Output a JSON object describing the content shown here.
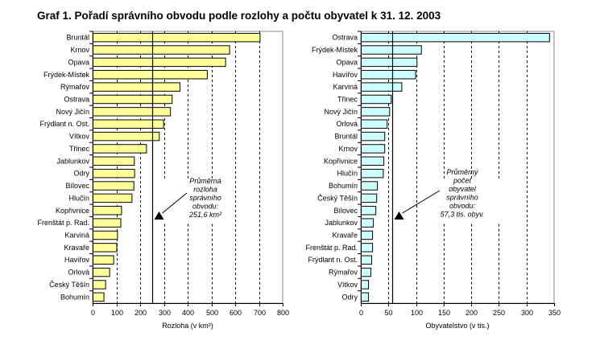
{
  "chart_data": [
    {
      "type": "bar",
      "orientation": "horizontal",
      "title": "Graf 1. Pořadí správního obvodu podle rozlohy a počtu obyvatel k 31. 12. 2003",
      "xlabel": "Rozloha (v km²)",
      "xlim": [
        0,
        800
      ],
      "xticks": [
        "0",
        "100",
        "200",
        "300",
        "400",
        "500",
        "600",
        "700",
        "800"
      ],
      "tick_step": 100,
      "grid": "vertical dashed",
      "bar_color": "#FFFF99",
      "categories": [
        "Bruntál",
        "Krnov",
        "Opava",
        "Frýdek-Místek",
        "Rýmařov",
        "Ostrava",
        "Nový Jičín",
        "Frýdlant n. Ost.",
        "Vítkov",
        "Třinec",
        "Jablunkov",
        "Odry",
        "Bílovec",
        "Hlučín",
        "Kopřivnice",
        "Frenštát p. Rad.",
        "Karviná",
        "Kravaře",
        "Havířov",
        "Orlová",
        "Český Těšín",
        "Bohumín"
      ],
      "values": [
        703,
        575,
        558,
        481,
        366,
        333,
        326,
        297,
        279,
        225,
        174,
        175,
        172,
        164,
        120,
        117,
        103,
        100,
        87,
        70,
        53,
        46
      ],
      "mean": 251.6,
      "annotation": [
        "Průměrná",
        "rozloha",
        "správního",
        "obvodu:",
        "251,6 km²"
      ]
    },
    {
      "type": "bar",
      "orientation": "horizontal",
      "xlabel": "Obyvatelstvo (v tis.)",
      "xlim": [
        0,
        350
      ],
      "xticks": [
        "0",
        "50",
        "100",
        "150",
        "200",
        "250",
        "300",
        "350"
      ],
      "tick_step": 50,
      "grid": "vertical dashed",
      "bar_color": "#CCFFFF",
      "categories": [
        "Ostrava",
        "Frýdek-Místek",
        "Opava",
        "Havířov",
        "Karviná",
        "Třinec",
        "Nový Jičín",
        "Orlová",
        "Bruntál",
        "Krnov",
        "Kopřivnice",
        "Hlučín",
        "Bohumín",
        "Český Těšín",
        "Bílovec",
        "Jablunkov",
        "Kravaře",
        "Frenštát p. Rad.",
        "Frýdlant n. Ost.",
        "Rýmařov",
        "Vítkov",
        "Odry"
      ],
      "values": [
        341,
        109,
        101,
        98.5,
        73.5,
        54.4,
        51.5,
        47,
        42.6,
        42.6,
        41,
        40,
        29.4,
        28,
        26.5,
        22,
        20.6,
        20.6,
        19,
        17.6,
        13.2,
        13.2
      ],
      "mean": 57.3,
      "annotation": [
        "Průměrný",
        "počet",
        "obyvatel",
        "správního",
        "obvodu:",
        "57,3 tis. obyv."
      ]
    }
  ]
}
